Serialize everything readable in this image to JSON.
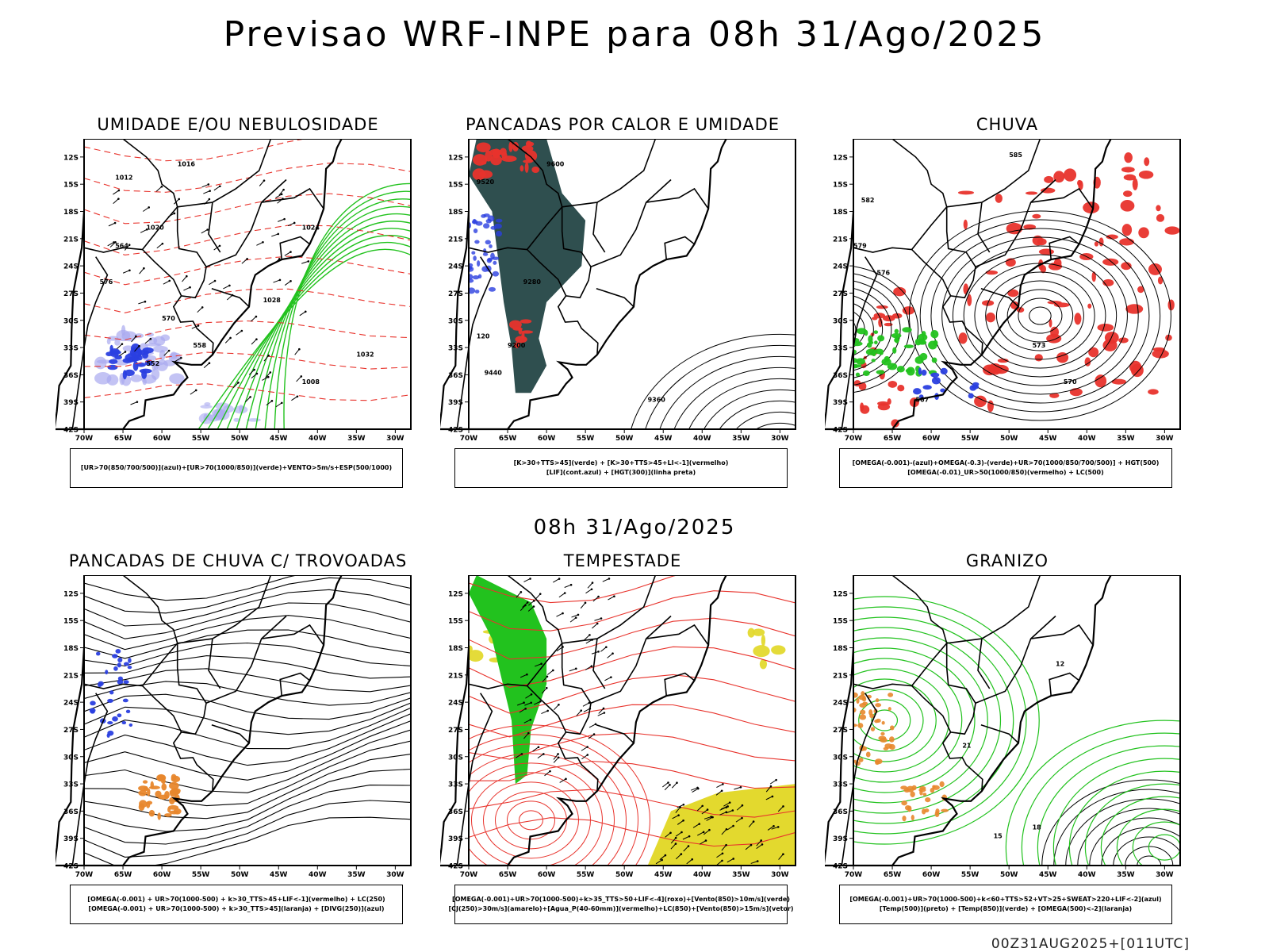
{
  "header": {
    "title": "Previsao WRF-INPE  para 08h 31/Ago/2025",
    "subtitle": "08h 31/Ago/2025",
    "footer": "00Z31AUG2025+[011UTC]"
  },
  "colors": {
    "green": "#22c21e",
    "red": "#e8332c",
    "blue": "#2a3fe0",
    "orange": "#e8872c",
    "darkteal": "#2f4f4f",
    "yellow": "#e3d92e",
    "lavender": "#a9a9f0",
    "purple": "#8a2be2"
  },
  "chart_data": [
    {
      "type": "heatmap",
      "title": "UMIDADE E/OU NEBULOSIDADE",
      "xlabel": "",
      "ylabel": "",
      "x_ticks": [
        "70W",
        "65W",
        "60W",
        "55W",
        "50W",
        "45W",
        "40W",
        "35W",
        "30W"
      ],
      "y_ticks": [
        "12S",
        "15S",
        "18S",
        "21S",
        "24S",
        "27S",
        "30S",
        "33S",
        "36S",
        "39S",
        "42S"
      ],
      "xlim": [
        -70,
        -28
      ],
      "ylim": [
        -42,
        -10
      ],
      "contour_labels": [
        "1012",
        "1016",
        "1020",
        "1024",
        "1028",
        "1032",
        "1008",
        "570",
        "564",
        "558",
        "552",
        "576"
      ],
      "legend": [
        "[UR>70(850/700/500)](azul)+[UR>70(1000/850)](verde)+VENTO>5m/s+ESP(500/1000)"
      ]
    },
    {
      "type": "heatmap",
      "title": "PANCADAS POR CALOR E UMIDADE",
      "xlabel": "",
      "ylabel": "",
      "x_ticks": [
        "70W",
        "65W",
        "60W",
        "55W",
        "50W",
        "45W",
        "40W",
        "35W",
        "30W"
      ],
      "y_ticks": [
        "12S",
        "15S",
        "18S",
        "21S",
        "24S",
        "27S",
        "30S",
        "33S",
        "36S",
        "39S",
        "42S"
      ],
      "xlim": [
        -70,
        -28
      ],
      "ylim": [
        -42,
        -10
      ],
      "contour_labels": [
        "9600",
        "9520",
        "9440",
        "9360",
        "9280",
        "9200",
        "120"
      ],
      "legend": [
        "[K>30+TTS>45](verde) + [K>30+TTS>45+LI<-1](vermelho)",
        "[LIF](cont.azul) + [HGT(300)](linha preta)"
      ]
    },
    {
      "type": "heatmap",
      "title": "CHUVA",
      "xlabel": "",
      "ylabel": "",
      "x_ticks": [
        "70W",
        "65W",
        "60W",
        "55W",
        "50W",
        "45W",
        "40W",
        "35W",
        "30W"
      ],
      "y_ticks": [
        "12S",
        "15S",
        "18S",
        "21S",
        "24S",
        "27S",
        "30S",
        "33S",
        "36S",
        "39S",
        "42S"
      ],
      "xlim": [
        -70,
        -28
      ],
      "ylim": [
        -42,
        -10
      ],
      "contour_labels": [
        "585",
        "582",
        "579",
        "576",
        "573",
        "570",
        "567"
      ],
      "legend": [
        "[OMEGA(-0.001)-(azul)+OMEGA(-0.3)-(verde)+UR>70(1000/850/700/500)] + HGT(500)",
        "[OMEGA(-0.01)_UR>50(1000/850)(vermelho) + LC(500)"
      ]
    },
    {
      "type": "heatmap",
      "title": "PANCADAS DE CHUVA C/ TROVOADAS",
      "xlabel": "",
      "ylabel": "",
      "x_ticks": [
        "70W",
        "65W",
        "60W",
        "55W",
        "50W",
        "45W",
        "40W",
        "35W",
        "30W"
      ],
      "y_ticks": [
        "12S",
        "15S",
        "18S",
        "21S",
        "24S",
        "27S",
        "30S",
        "33S",
        "36S",
        "39S",
        "42S"
      ],
      "xlim": [
        -70,
        -28
      ],
      "ylim": [
        -42,
        -10
      ],
      "contour_labels": [],
      "legend": [
        "[OMEGA(-0.001) + UR>70(1000-500) + k>30_TTS>45+LIF<-1](vermelho) + LC(250)",
        "[OMEGA(-0.001) + UR>70(1000-500) + k>30_TTS>45](laranja) + [DIVG(250)](azul)"
      ]
    },
    {
      "type": "heatmap",
      "title": "TEMPESTADE",
      "xlabel": "",
      "ylabel": "",
      "x_ticks": [
        "70W",
        "65W",
        "60W",
        "55W",
        "50W",
        "45W",
        "40W",
        "35W",
        "30W"
      ],
      "y_ticks": [
        "12S",
        "15S",
        "18S",
        "21S",
        "24S",
        "27S",
        "30S",
        "33S",
        "36S",
        "39S",
        "42S"
      ],
      "xlim": [
        -70,
        -28
      ],
      "ylim": [
        -42,
        -10
      ],
      "contour_labels": [],
      "legend": [
        "[OMEGA(-0.001)+UR>70(1000-500)+k>35_TTS>50+LIF<-4](roxo)+[Vento(850)>10m/s](verde)",
        "[CJ(250)>30m/s](amarelo)+[Agua_P(40-60mm)](vermelho)+LC(850)+[Vento(850)>15m/s](vetor)"
      ]
    },
    {
      "type": "heatmap",
      "title": "GRANIZO",
      "xlabel": "",
      "ylabel": "",
      "x_ticks": [
        "70W",
        "65W",
        "60W",
        "55W",
        "50W",
        "45W",
        "40W",
        "35W",
        "30W"
      ],
      "y_ticks": [
        "12S",
        "15S",
        "18S",
        "21S",
        "24S",
        "27S",
        "30S",
        "33S",
        "36S",
        "39S",
        "42S"
      ],
      "xlim": [
        -70,
        -28
      ],
      "ylim": [
        -42,
        -10
      ],
      "contour_labels": [
        "12",
        "15",
        "18",
        "21"
      ],
      "legend": [
        "[OMEGA(-0.001)+UR>70(1000-500)+k<60+TTS>52+VT>25+SWEAT>220+LIF<-2](azul)",
        "[Temp(500)](preto) + [Temp(850)](verde) + [OMEGA(500)<-2](laranja)"
      ]
    }
  ]
}
